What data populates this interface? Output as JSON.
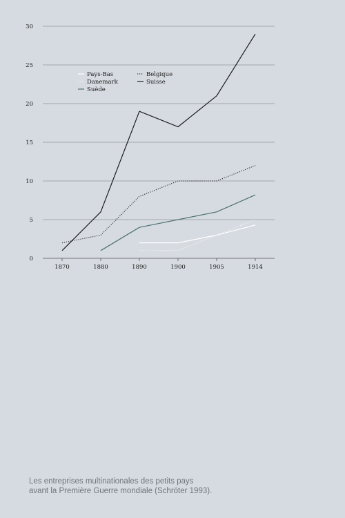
{
  "chart_data": {
    "type": "line",
    "categories": [
      "1870",
      "1880",
      "1890",
      "1900",
      "1905",
      "1914"
    ],
    "ylim": [
      0,
      30
    ],
    "yticks": [
      0,
      5,
      10,
      15,
      20,
      25,
      30
    ],
    "grid": true,
    "legend_position": "top-left",
    "series": [
      {
        "name": "Pays-Bas",
        "color": "#ffffff",
        "dash": "solid",
        "values": [
          null,
          null,
          2,
          2,
          3,
          4.3
        ]
      },
      {
        "name": "Belgique",
        "color": "#333333",
        "dash": "dotted",
        "values": [
          2,
          3,
          8,
          10,
          10,
          12
        ]
      },
      {
        "name": "Danemark",
        "color": "#f4f4f4",
        "dash": "dotted",
        "values": [
          null,
          null,
          1,
          1,
          3,
          5
        ]
      },
      {
        "name": "Suisse",
        "color": "#1a1a1a",
        "dash": "solid",
        "values": [
          1,
          6,
          19,
          17,
          21,
          29
        ]
      },
      {
        "name": "Suède",
        "color": "#4c6f73",
        "dash": "solid",
        "values": [
          null,
          1,
          4,
          5,
          6,
          8.2
        ]
      }
    ]
  },
  "caption": {
    "line1": "Les entreprises multinationales des petits pays",
    "line2": "avant la Première Guerre mondiale (Schröter 1993)."
  }
}
